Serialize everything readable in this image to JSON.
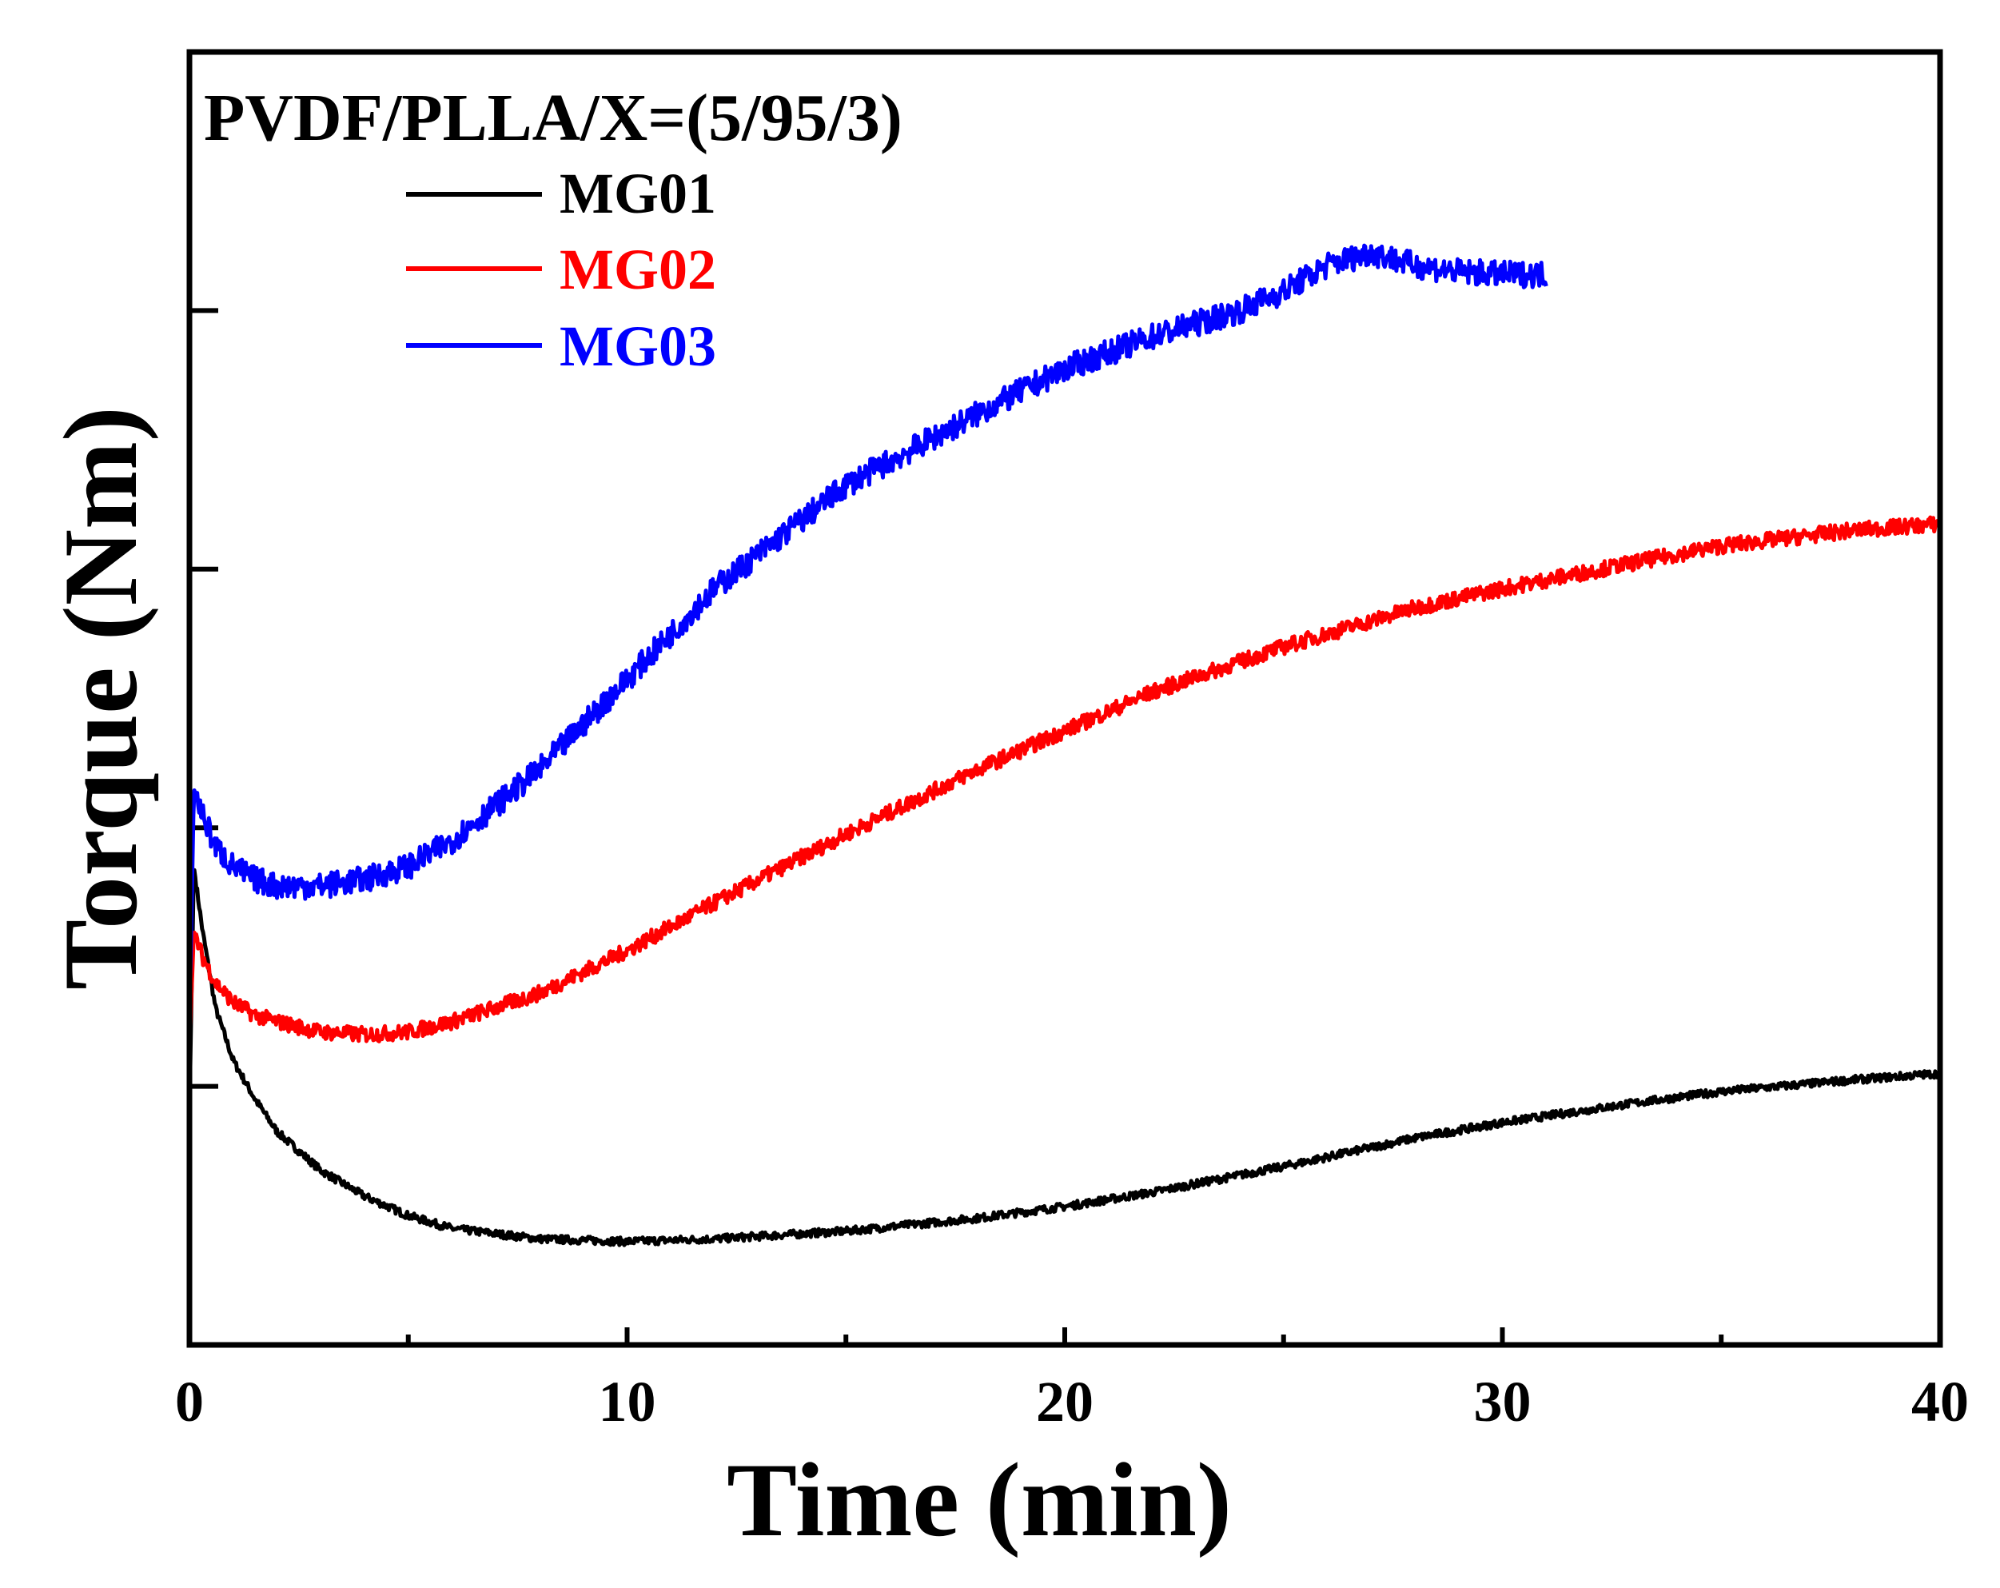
{
  "chart_data": {
    "type": "line",
    "title": "",
    "annotation": "PVDF/PLLA/X=(5/95/3)",
    "xlabel": "Time (min)",
    "ylabel": "Torque (Nm)",
    "xlim": [
      0,
      40
    ],
    "ylim": [
      0,
      10
    ],
    "xticks": [
      0,
      10,
      20,
      30,
      40
    ],
    "xtick_labels": [
      "0",
      "10",
      "20",
      "30",
      "40"
    ],
    "yticks": [
      2,
      4,
      6,
      8
    ],
    "ytick_labels": [
      "",
      "",
      "",
      ""
    ],
    "grid": false,
    "legend_position": "top-left",
    "series": [
      {
        "name": "MG01",
        "color": "#000000",
        "noise": 0.03,
        "x": [
          0,
          0.1,
          0.3,
          0.6,
          1,
          1.5,
          2,
          3,
          4,
          5,
          6,
          8,
          10,
          12,
          15,
          18,
          20,
          22,
          25,
          28,
          30,
          33,
          35,
          38,
          40
        ],
        "y": [
          1.8,
          3.7,
          3.2,
          2.6,
          2.2,
          1.9,
          1.65,
          1.35,
          1.15,
          1.0,
          0.9,
          0.82,
          0.8,
          0.82,
          0.88,
          0.98,
          1.07,
          1.18,
          1.38,
          1.6,
          1.72,
          1.87,
          1.96,
          2.05,
          2.1
        ]
      },
      {
        "name": "MG02",
        "color": "#ff0000",
        "noise": 0.06,
        "x": [
          0,
          0.1,
          0.3,
          0.6,
          1,
          1.5,
          2,
          3,
          4,
          5,
          6,
          8,
          10,
          12,
          15,
          18,
          20,
          22,
          25,
          28,
          30,
          33,
          35,
          38,
          40
        ],
        "y": [
          2.3,
          3.2,
          3.0,
          2.8,
          2.65,
          2.55,
          2.5,
          2.42,
          2.4,
          2.42,
          2.5,
          2.72,
          3.05,
          3.42,
          3.95,
          4.45,
          4.75,
          5.05,
          5.4,
          5.7,
          5.85,
          6.05,
          6.18,
          6.3,
          6.35
        ]
      },
      {
        "name": "MG03",
        "color": "#0000ff",
        "noise": 0.1,
        "x": [
          0,
          0.1,
          0.3,
          0.6,
          1,
          1.5,
          2,
          3,
          4,
          5,
          6,
          8,
          10,
          12,
          15,
          18,
          20,
          22,
          24,
          25,
          26,
          27,
          28,
          29,
          30,
          31
        ],
        "y": [
          2.5,
          4.3,
          4.1,
          3.85,
          3.7,
          3.6,
          3.55,
          3.55,
          3.6,
          3.7,
          3.9,
          4.45,
          5.15,
          5.85,
          6.65,
          7.2,
          7.55,
          7.8,
          8.0,
          8.15,
          8.35,
          8.45,
          8.35,
          8.3,
          8.28,
          8.28
        ]
      }
    ]
  }
}
